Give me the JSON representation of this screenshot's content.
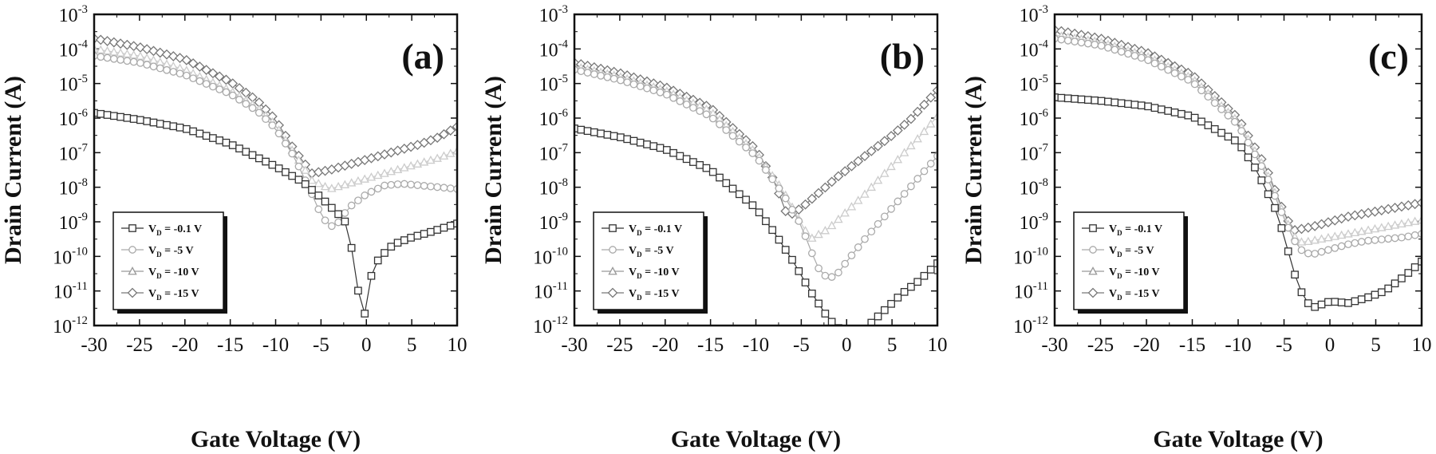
{
  "chart_data": [
    {
      "type": "scatter",
      "panel_label": "(a)",
      "xlabel": "Gate Voltage (V)",
      "ylabel": "Drain Current (A)",
      "xlim": [
        -30,
        10
      ],
      "ylim_log10": [
        -12,
        -3
      ],
      "yscale": "log",
      "x_ticks": [
        "-30",
        "-25",
        "-20",
        "-15",
        "-10",
        "-5",
        "0",
        "5",
        "10"
      ],
      "legend_position": "bottom-left",
      "legend_entries": [
        "V_D = -0.1 V",
        "V_D = -5 V",
        "V_D = -10 V",
        "V_D = -15 V"
      ],
      "series": [
        {
          "name": "V_D = -0.1 V",
          "marker": "square",
          "color": "#333333",
          "x": [
            -30,
            -25,
            -20,
            -15,
            -10,
            -7,
            -5,
            -3,
            -2,
            -1.5,
            -1,
            -0.5,
            0,
            0.5,
            1,
            2,
            3,
            5,
            7,
            10
          ],
          "log10": [
            -5.85,
            -6.05,
            -6.3,
            -6.75,
            -7.4,
            -7.85,
            -8.3,
            -8.8,
            -9.1,
            -10,
            -10.9,
            -11.4,
            -11.8,
            -10.6,
            -10.2,
            -9.9,
            -9.65,
            -9.45,
            -9.3,
            -9.05
          ]
        },
        {
          "name": "V_D = -5 V",
          "marker": "circle",
          "color": "#aaaaaa",
          "x": [
            -30,
            -25,
            -20,
            -15,
            -12,
            -10,
            -8,
            -6,
            -5,
            -4,
            -3,
            -2,
            0,
            2,
            4,
            6,
            8,
            10
          ],
          "log10": [
            -4.2,
            -4.4,
            -4.75,
            -5.3,
            -5.8,
            -6.3,
            -7.1,
            -8.2,
            -8.8,
            -9.15,
            -9.0,
            -8.6,
            -8.2,
            -7.95,
            -7.9,
            -7.95,
            -8.0,
            -8.05
          ]
        },
        {
          "name": "V_D = -10 V",
          "marker": "triangle",
          "color": "#cccccc",
          "x": [
            -30,
            -25,
            -20,
            -15,
            -12,
            -10,
            -8,
            -6,
            -4,
            -2,
            0,
            2,
            4,
            6,
            8,
            10
          ],
          "log10": [
            -4.0,
            -4.2,
            -4.6,
            -5.2,
            -5.7,
            -6.2,
            -7.0,
            -7.8,
            -8.05,
            -7.9,
            -7.75,
            -7.6,
            -7.45,
            -7.3,
            -7.15,
            -6.95
          ]
        },
        {
          "name": "V_D = -15 V",
          "marker": "diamond",
          "color": "#777777",
          "x": [
            -30,
            -25,
            -20,
            -15,
            -12,
            -10,
            -8,
            -6,
            -4,
            -2,
            0,
            2,
            4,
            6,
            8,
            10
          ],
          "log10": [
            -3.7,
            -3.95,
            -4.3,
            -4.95,
            -5.5,
            -6.05,
            -6.9,
            -7.6,
            -7.5,
            -7.35,
            -7.2,
            -7.05,
            -6.9,
            -6.75,
            -6.55,
            -6.25
          ]
        }
      ]
    },
    {
      "type": "scatter",
      "panel_label": "(b)",
      "xlabel": "Gate Voltage (V)",
      "ylabel": "Drain Current (A)",
      "xlim": [
        -30,
        10
      ],
      "ylim_log10": [
        -12,
        -3
      ],
      "yscale": "log",
      "x_ticks": [
        "-30",
        "-25",
        "-20",
        "-15",
        "-10",
        "-5",
        "0",
        "5",
        "10"
      ],
      "legend_position": "bottom-left",
      "legend_entries": [
        "V_D = -0.1 V",
        "V_D = -5 V",
        "V_D = -10 V",
        "V_D = -15 V"
      ],
      "series": [
        {
          "name": "V_D = -0.1 V",
          "marker": "square",
          "color": "#333333",
          "x": [
            -30,
            -25,
            -20,
            -15,
            -10,
            -8,
            -6,
            -4,
            -2,
            0,
            2,
            4,
            6,
            8,
            10
          ],
          "log10": [
            -6.3,
            -6.55,
            -6.9,
            -7.5,
            -8.6,
            -9.3,
            -10.1,
            -11.0,
            -11.8,
            -12.3,
            -12.1,
            -11.6,
            -11.1,
            -10.7,
            -10.2
          ]
        },
        {
          "name": "V_D = -5 V",
          "marker": "circle",
          "color": "#aaaaaa",
          "x": [
            -30,
            -25,
            -20,
            -15,
            -10,
            -7,
            -5,
            -4,
            -3,
            -2,
            -1,
            0,
            2,
            4,
            6,
            8,
            10
          ],
          "log10": [
            -4.6,
            -4.9,
            -5.3,
            -5.95,
            -7.1,
            -8.2,
            -9.1,
            -9.8,
            -10.4,
            -10.65,
            -10.5,
            -10.15,
            -9.5,
            -8.9,
            -8.3,
            -7.7,
            -7.1
          ]
        },
        {
          "name": "V_D = -10 V",
          "marker": "triangle",
          "color": "#cccccc",
          "x": [
            -30,
            -25,
            -20,
            -15,
            -10,
            -7,
            -5,
            -4,
            -2,
            0,
            2,
            4,
            6,
            8,
            10
          ],
          "log10": [
            -4.5,
            -4.8,
            -5.2,
            -5.8,
            -7.0,
            -8.1,
            -9.05,
            -9.5,
            -9.2,
            -8.7,
            -8.2,
            -7.65,
            -7.1,
            -6.55,
            -5.95
          ]
        },
        {
          "name": "V_D = -15 V",
          "marker": "diamond",
          "color": "#777777",
          "x": [
            -30,
            -25,
            -20,
            -15,
            -10,
            -8,
            -6.5,
            -5,
            -3,
            -1,
            1,
            3,
            5,
            7,
            10
          ],
          "log10": [
            -4.4,
            -4.7,
            -5.1,
            -5.7,
            -6.9,
            -7.8,
            -8.85,
            -8.6,
            -8.15,
            -7.7,
            -7.3,
            -6.9,
            -6.5,
            -6.05,
            -5.2
          ]
        }
      ]
    },
    {
      "type": "scatter",
      "panel_label": "(c)",
      "xlabel": "Gate Voltage (V)",
      "ylabel": "Drain Current (A)",
      "xlim": [
        -30,
        10
      ],
      "ylim_log10": [
        -12,
        -3
      ],
      "yscale": "log",
      "x_ticks": [
        "-30",
        "-25",
        "-20",
        "-15",
        "-10",
        "-5",
        "0",
        "5",
        "10"
      ],
      "legend_position": "bottom-left",
      "legend_entries": [
        "V_D = -0.1 V",
        "V_D = -5 V",
        "V_D = -10 V",
        "V_D = -15 V"
      ],
      "series": [
        {
          "name": "V_D = -0.1 V",
          "marker": "square",
          "color": "#333333",
          "x": [
            -30,
            -25,
            -20,
            -15,
            -10,
            -8,
            -6,
            -5,
            -4,
            -3,
            -2,
            -1,
            0,
            2,
            4,
            6,
            8,
            10
          ],
          "log10": [
            -5.4,
            -5.5,
            -5.65,
            -5.95,
            -6.7,
            -7.5,
            -8.6,
            -9.4,
            -10.4,
            -11.1,
            -11.5,
            -11.4,
            -11.3,
            -11.35,
            -11.2,
            -11.0,
            -10.6,
            -10.15
          ]
        },
        {
          "name": "V_D = -5 V",
          "marker": "circle",
          "color": "#aaaaaa",
          "x": [
            -30,
            -25,
            -20,
            -15,
            -10,
            -7,
            -5,
            -4,
            -3,
            -2,
            0,
            2,
            4,
            6,
            8,
            10
          ],
          "log10": [
            -3.7,
            -3.9,
            -4.3,
            -4.95,
            -6.2,
            -7.6,
            -8.9,
            -9.5,
            -9.85,
            -9.95,
            -9.8,
            -9.65,
            -9.55,
            -9.5,
            -9.45,
            -9.35
          ]
        },
        {
          "name": "V_D = -10 V",
          "marker": "triangle",
          "color": "#cccccc",
          "x": [
            -30,
            -25,
            -20,
            -15,
            -10,
            -7,
            -5,
            -4,
            -3,
            -2,
            0,
            2,
            4,
            6,
            8,
            10
          ],
          "log10": [
            -3.6,
            -3.8,
            -4.2,
            -4.85,
            -6.1,
            -7.5,
            -8.8,
            -9.4,
            -9.6,
            -9.55,
            -9.45,
            -9.35,
            -9.25,
            -9.15,
            -9.05,
            -8.95
          ]
        },
        {
          "name": "V_D = -15 V",
          "marker": "diamond",
          "color": "#777777",
          "x": [
            -30,
            -25,
            -20,
            -15,
            -10,
            -7,
            -5,
            -4,
            -3,
            -2,
            0,
            2,
            4,
            6,
            8,
            10
          ],
          "log10": [
            -3.45,
            -3.7,
            -4.1,
            -4.75,
            -6.0,
            -7.4,
            -8.75,
            -9.25,
            -9.2,
            -9.15,
            -9.0,
            -8.85,
            -8.75,
            -8.65,
            -8.55,
            -8.45
          ]
        }
      ]
    }
  ]
}
